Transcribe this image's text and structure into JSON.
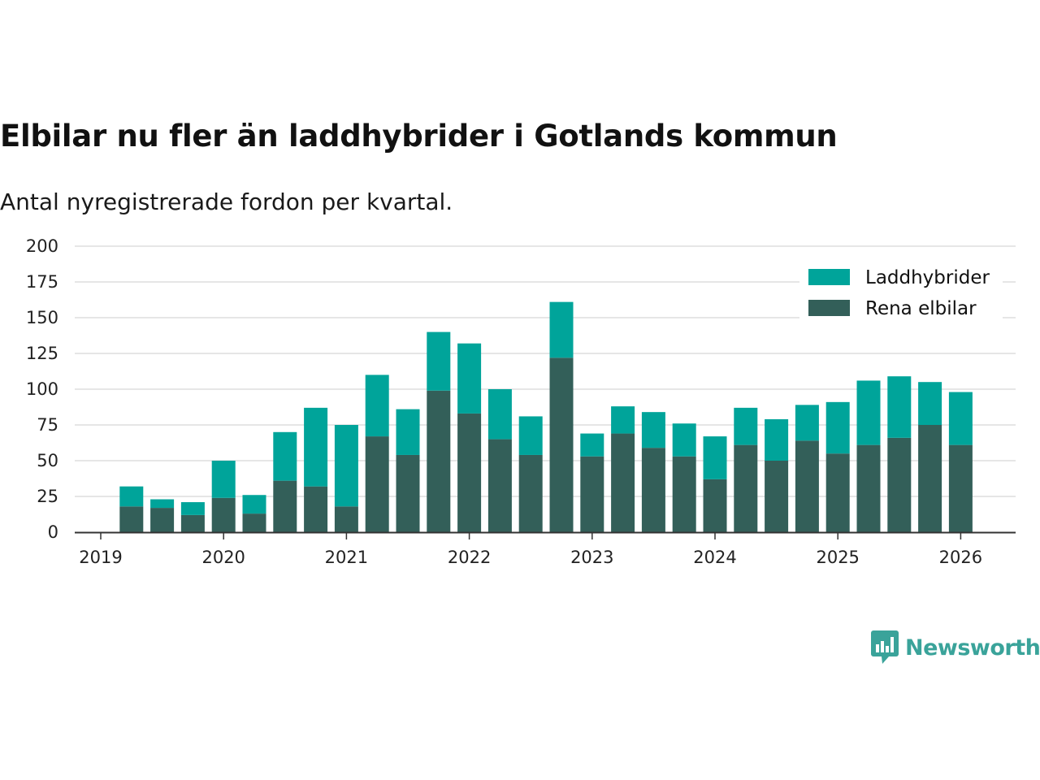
{
  "title": "Elbilar nu fler än laddhybrider i Gotlands kommun",
  "subtitle": "Antal nyregistrerade fordon per kvartal.",
  "logo": {
    "text": "Newsworthy",
    "color": "#3aa39a"
  },
  "chart_data": {
    "type": "bar",
    "stacked": true,
    "title": "Elbilar nu fler än laddhybrider i Gotlands kommun",
    "subtitle": "Antal nyregistrerade fordon per kvartal.",
    "xlabel": "",
    "ylabel": "",
    "ylim": [
      0,
      200
    ],
    "yticks": [
      "0",
      "25",
      "50",
      "75",
      "100",
      "125",
      "150",
      "175",
      "200"
    ],
    "xticks": [
      "2019",
      "2020",
      "2021",
      "2022",
      "2023",
      "2024",
      "2025",
      "2026"
    ],
    "grid": true,
    "legend_position": "top-right",
    "categories": [
      "2019 Q2",
      "2019 Q3",
      "2019 Q4",
      "2020 Q1",
      "2020 Q2",
      "2020 Q3",
      "2020 Q4",
      "2021 Q1",
      "2021 Q2",
      "2021 Q3",
      "2021 Q4",
      "2022 Q1",
      "2022 Q2",
      "2022 Q3",
      "2022 Q4",
      "2023 Q1",
      "2023 Q2",
      "2023 Q3",
      "2023 Q4",
      "2024 Q1",
      "2024 Q2",
      "2024 Q3",
      "2024 Q4",
      "2025 Q1",
      "2025 Q2",
      "2025 Q3",
      "2025 Q4",
      "2026 Q1"
    ],
    "series": [
      {
        "name": "Rena elbilar",
        "color": "#335f59",
        "values": [
          18,
          17,
          12,
          24,
          13,
          36,
          32,
          18,
          67,
          54,
          99,
          83,
          65,
          54,
          122,
          53,
          69,
          59,
          53,
          37,
          61,
          50,
          64,
          55,
          61,
          66,
          75,
          61
        ]
      },
      {
        "name": "Laddhybrider",
        "color": "#00a49a",
        "values": [
          14,
          6,
          9,
          26,
          13,
          34,
          55,
          57,
          43,
          32,
          41,
          49,
          35,
          27,
          39,
          16,
          19,
          25,
          23,
          30,
          26,
          29,
          25,
          36,
          45,
          43,
          30,
          37
        ]
      }
    ]
  }
}
